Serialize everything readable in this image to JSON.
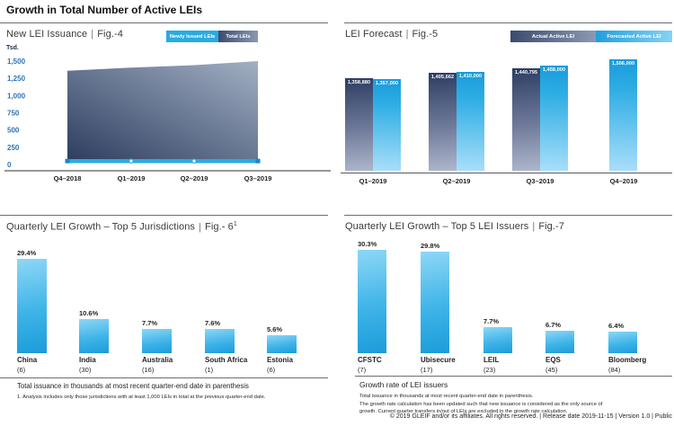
{
  "page_title": "Growth in Total Number of Active LEIs",
  "footer_text": "© 2019 GLEIF and/or its affiliates. All rights reserved.  |  Release date 2019-11-15  |  Version 1.0  |  Public",
  "colors": {
    "brand_blue": "#29ABE2",
    "navy": "#2C3D62",
    "tick_blue": "#2E74B5",
    "axis_gray": "#58595B",
    "divider_gray": "#6D6E71"
  },
  "footnotes": {
    "fig6_bold": "Total issuance in thousands at most recent quarter-end date in parenthesis",
    "fig6_note": "1. Analysis includes only those jurisdictions with at least 1,000 LEIs in total at the previous quarter-end date.",
    "fig7_heading": "Growth rate of LEI issuers",
    "fig7_note1": "Total issuance in thousands at most recent quarter-end date in parenthesis.",
    "fig7_note2a": "The growth rate calculation has been updated such that new issuance is considered as the only source of",
    "fig7_note2b": "growth. Current quarter transfers in/out of LEIs are excluded in the growth rate calculation."
  },
  "chart_data": [
    {
      "id": "fig4",
      "type": "area",
      "title": "New LEI Issuance",
      "fig_label": "Fig.-4",
      "unit_label": "Tsd.",
      "x": [
        "Q4–2018",
        "Q1–2019",
        "Q2–2019",
        "Q3–2019"
      ],
      "series": [
        {
          "name": "Newly Issued LEIs",
          "values": [
            50,
            50,
            50,
            50
          ]
        },
        {
          "name": "Total LEIs",
          "values": [
            1359,
            1406,
            1441,
            1500
          ]
        }
      ],
      "ylabel": "Tsd.",
      "ylim": [
        0,
        1500
      ],
      "yticks": [
        0,
        250,
        500,
        750,
        1000,
        1250,
        1500
      ],
      "ytick_labels": [
        "0",
        "250",
        "500",
        "750",
        "1,000",
        "1,250",
        "1,500"
      ],
      "grid": false,
      "legend_position": "top-right"
    },
    {
      "id": "fig5",
      "type": "bar",
      "title": "LEI Forecast",
      "fig_label": "Fig.-5",
      "x": [
        "Q1–2019",
        "Q2–2019",
        "Q3–2019",
        "Q4–2019"
      ],
      "series": [
        {
          "name": "Actual Active LEI",
          "values": [
            1358880,
            1405662,
            1440795,
            null
          ],
          "labels": [
            "1,358,880",
            "1,405,662",
            "1,440,795",
            ""
          ]
        },
        {
          "name": "Forecasted Active LEI",
          "values": [
            1357000,
            1410000,
            1458000,
            1506000
          ],
          "labels": [
            "1,357,000",
            "1,410,000",
            "1,458,000",
            "1,506,000"
          ]
        }
      ],
      "value_labels_inside_bars": true,
      "axis_truncated": true,
      "legend_position": "top-right"
    },
    {
      "id": "fig6",
      "type": "bar",
      "title": "Quarterly LEI Growth – Top 5 Jurisdictions",
      "fig_label": "Fig.- 6",
      "fig_sup": "1",
      "categories": [
        "China",
        "India",
        "Australia",
        "South Africa",
        "Estonia"
      ],
      "counts": [
        "(6)",
        "(30)",
        "(16)",
        "(1)",
        "(6)"
      ],
      "values": [
        29.4,
        10.6,
        7.7,
        7.6,
        5.6
      ],
      "value_labels": [
        "29.4%",
        "10.6%",
        "7.7%",
        "7.6%",
        "5.6%"
      ]
    },
    {
      "id": "fig7",
      "type": "bar",
      "title": "Quarterly LEI Growth – Top 5 LEI Issuers",
      "fig_label": "Fig.-7",
      "categories": [
        "CFSTC",
        "Ubisecure",
        "LEIL",
        "EQS",
        "Bloomberg"
      ],
      "counts": [
        "(7)",
        "(17)",
        "(23)",
        "(45)",
        "(84)"
      ],
      "values": [
        30.3,
        29.8,
        7.7,
        6.7,
        6.4
      ],
      "value_labels": [
        "30.3%",
        "29.8%",
        "7.7%",
        "6.7%",
        "6.4%"
      ]
    }
  ]
}
